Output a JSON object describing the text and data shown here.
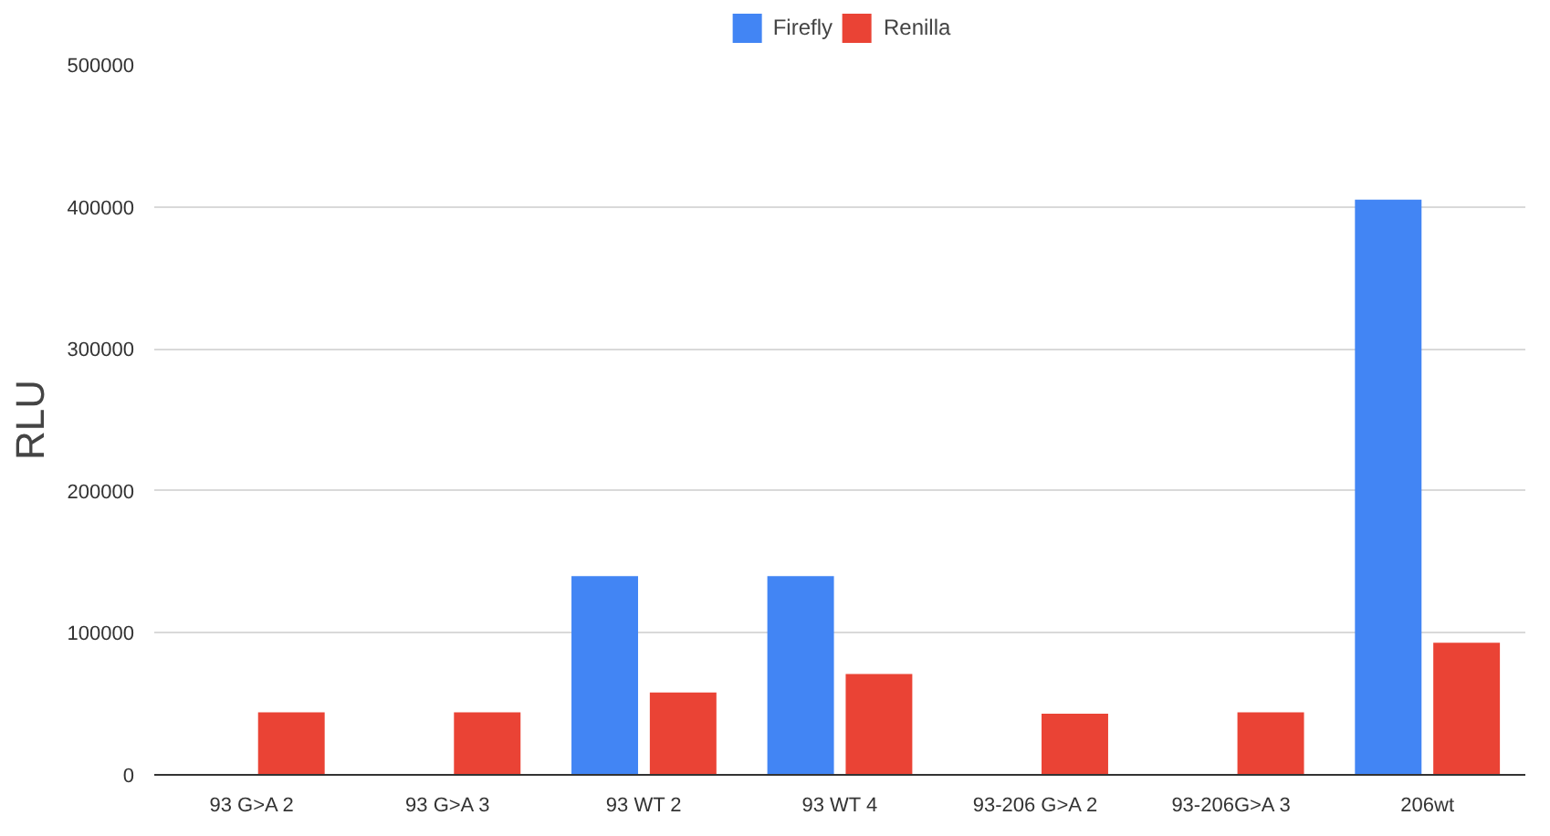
{
  "chart_data": {
    "type": "bar",
    "ylabel": "RLU",
    "categories": [
      "93 G>A 2",
      "93 G>A 3",
      "93 WT 2",
      "93 WT 4",
      "93-206 G>A 2",
      "93-206G>A 3",
      "206wt"
    ],
    "series": [
      {
        "name": "Firefly",
        "color": "#4285f4",
        "values": [
          0,
          0,
          140000,
          140000,
          0,
          0,
          405000
        ]
      },
      {
        "name": "Renilla",
        "color": "#ea4335",
        "values": [
          44000,
          44000,
          58000,
          71000,
          43000,
          44000,
          93000
        ]
      }
    ],
    "ylim": [
      0,
      500000
    ],
    "yticks": [
      0,
      100000,
      200000,
      300000,
      400000,
      500000
    ],
    "grid": "y",
    "legend": "top"
  }
}
